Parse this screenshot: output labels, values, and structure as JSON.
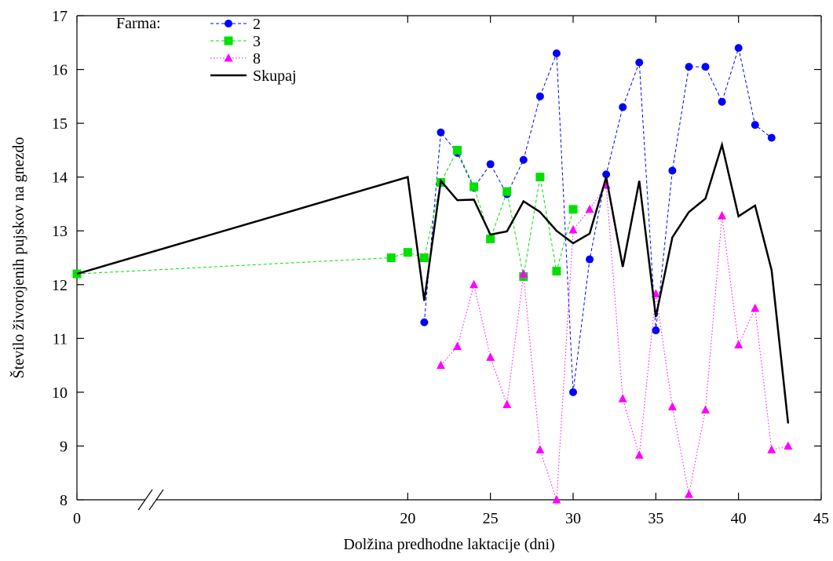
{
  "chart_data": {
    "type": "line",
    "xlabel": "Dolžina predhodne laktacije (dni)",
    "ylabel": "Število živorojenih pujskov na gnezdo",
    "xlim": [
      0,
      45
    ],
    "ylim": [
      8,
      17
    ],
    "x_ticks": [
      0,
      20,
      25,
      30,
      35,
      40,
      45
    ],
    "y_ticks": [
      8,
      9,
      10,
      11,
      12,
      13,
      14,
      15,
      16,
      17
    ],
    "axis_break": "between 0 and 20 on x axis",
    "grid": false,
    "legend_title": "Farma:",
    "legend_position": "top-left",
    "series": [
      {
        "name": "2",
        "color": "#0000ff",
        "line": "dashed",
        "marker": "circle",
        "points": [
          [
            21,
            11.3
          ],
          [
            22,
            14.83
          ],
          [
            23,
            14.45
          ],
          [
            24,
            13.8
          ],
          [
            25,
            14.24
          ],
          [
            26,
            13.68
          ],
          [
            27,
            14.32
          ],
          [
            28,
            15.5
          ],
          [
            29,
            16.3
          ],
          [
            30,
            10.0
          ],
          [
            31,
            12.47
          ],
          [
            32,
            14.05
          ],
          [
            33,
            15.3
          ],
          [
            34,
            16.13
          ],
          [
            35,
            11.15
          ],
          [
            36,
            14.12
          ],
          [
            37,
            16.05
          ],
          [
            38,
            16.05
          ],
          [
            39,
            15.4
          ],
          [
            40,
            16.4
          ],
          [
            41,
            14.97
          ],
          [
            42,
            14.73
          ]
        ]
      },
      {
        "name": "3",
        "color": "#00e000",
        "line": "dashed",
        "marker": "square",
        "points": [
          [
            0,
            12.2
          ],
          [
            19,
            12.5
          ],
          [
            20,
            12.6
          ],
          [
            21,
            12.5
          ],
          [
            22,
            13.9
          ],
          [
            23,
            14.5
          ],
          [
            24,
            13.82
          ],
          [
            25,
            12.85
          ],
          [
            26,
            13.73
          ],
          [
            27,
            12.15
          ],
          [
            28,
            14.0
          ],
          [
            29,
            12.25
          ],
          [
            30,
            13.4
          ]
        ]
      },
      {
        "name": "8",
        "color": "#ff00ff",
        "line": "dotted",
        "marker": "triangle",
        "points": [
          [
            22,
            10.5
          ],
          [
            23,
            10.85
          ],
          [
            24,
            12.0
          ],
          [
            25,
            10.65
          ],
          [
            26,
            9.77
          ],
          [
            27,
            12.2
          ],
          [
            28,
            8.93
          ],
          [
            29,
            8.0
          ],
          [
            30,
            13.02
          ],
          [
            31,
            13.4
          ],
          [
            32,
            13.85
          ],
          [
            33,
            9.88
          ],
          [
            34,
            8.83
          ],
          [
            35,
            11.83
          ],
          [
            36,
            9.73
          ],
          [
            37,
            8.1
          ],
          [
            38,
            9.67
          ],
          [
            39,
            13.28
          ],
          [
            40,
            10.88
          ],
          [
            41,
            11.56
          ],
          [
            42,
            8.93
          ],
          [
            43,
            9.0
          ]
        ]
      },
      {
        "name": "Skupaj",
        "color": "#000000",
        "line": "solid",
        "marker": "none",
        "points": [
          [
            0,
            12.2
          ],
          [
            20,
            14.0
          ],
          [
            21,
            11.7
          ],
          [
            22,
            13.93
          ],
          [
            23,
            13.57
          ],
          [
            24,
            13.58
          ],
          [
            25,
            12.93
          ],
          [
            26,
            12.99
          ],
          [
            27,
            13.55
          ],
          [
            28,
            13.35
          ],
          [
            29,
            13.0
          ],
          [
            30,
            12.77
          ],
          [
            31,
            12.95
          ],
          [
            32,
            14.0
          ],
          [
            33,
            12.33
          ],
          [
            34,
            13.93
          ],
          [
            35,
            11.4
          ],
          [
            36,
            12.88
          ],
          [
            37,
            13.35
          ],
          [
            38,
            13.6
          ],
          [
            39,
            14.6
          ],
          [
            40,
            13.27
          ],
          [
            41,
            13.47
          ],
          [
            42,
            12.27
          ],
          [
            43,
            9.42
          ]
        ]
      }
    ]
  }
}
